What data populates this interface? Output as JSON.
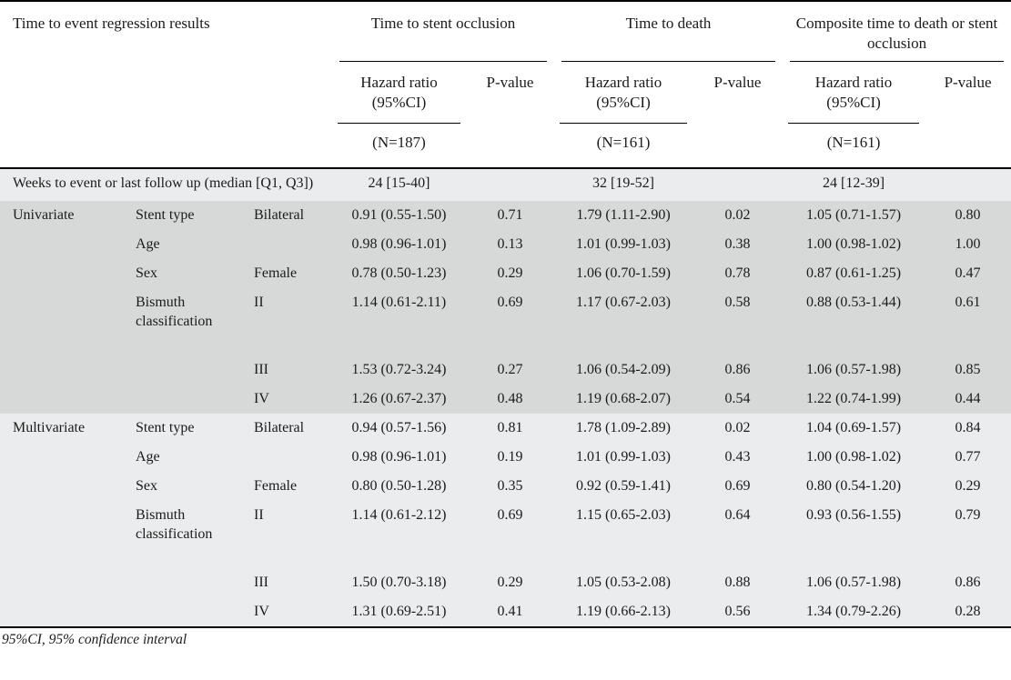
{
  "table": {
    "title": "Time to event regression results",
    "groups": [
      {
        "label": "Time to stent occlusion",
        "n": "(N=187)"
      },
      {
        "label": "Time to death",
        "n": "(N=161)"
      },
      {
        "label": "Composite time to death or stent occlusion",
        "n": "(N=161)"
      }
    ],
    "sub": {
      "hazard_ratio": "Hazard ratio (95%CI)",
      "p_value": "P-value"
    },
    "rows": [
      {
        "type": "span",
        "shade": "light",
        "tall": false,
        "label": "Weeks to event or last follow up (median [Q1, Q3])",
        "values": [
          "24 [15-40]",
          "",
          "32 [19-52]",
          "",
          "24 [12-39]",
          ""
        ]
      },
      {
        "type": "data",
        "shade": "dark",
        "tall": false,
        "cells": [
          "Univariate",
          "Stent type",
          "Bilateral",
          "0.91 (0.55-1.50)",
          "0.71",
          "1.79 (1.11-2.90)",
          "0.02",
          "1.05 (0.71-1.57)",
          "0.80"
        ]
      },
      {
        "type": "data",
        "shade": "dark",
        "tall": false,
        "cells": [
          "",
          "Age",
          "",
          "0.98 (0.96-1.01)",
          "0.13",
          "1.01 (0.99-1.03)",
          "0.38",
          "1.00 (0.98-1.02)",
          "1.00"
        ]
      },
      {
        "type": "data",
        "shade": "dark",
        "tall": false,
        "cells": [
          "",
          "Sex",
          "Female",
          "0.78 (0.50-1.23)",
          "0.29",
          "1.06 (0.70-1.59)",
          "0.78",
          "0.87 (0.61-1.25)",
          "0.47"
        ]
      },
      {
        "type": "data",
        "shade": "dark",
        "tall": true,
        "cells": [
          "",
          "Bismuth classification",
          "II",
          "1.14 (0.61-2.11)",
          "0.69",
          "1.17 (0.67-2.03)",
          "0.58",
          "0.88 (0.53-1.44)",
          "0.61"
        ]
      },
      {
        "type": "data",
        "shade": "dark",
        "tall": false,
        "cells": [
          "",
          "",
          "III",
          "1.53 (0.72-3.24)",
          "0.27",
          "1.06 (0.54-2.09)",
          "0.86",
          "1.06 (0.57-1.98)",
          "0.85"
        ]
      },
      {
        "type": "data",
        "shade": "dark",
        "tall": false,
        "cells": [
          "",
          "",
          "IV",
          "1.26 (0.67-2.37)",
          "0.48",
          "1.19 (0.68-2.07)",
          "0.54",
          "1.22 (0.74-1.99)",
          "0.44"
        ]
      },
      {
        "type": "data",
        "shade": "light",
        "tall": false,
        "cells": [
          "Multivariate",
          "Stent type",
          "Bilateral",
          "0.94 (0.57-1.56)",
          "0.81",
          "1.78 (1.09-2.89)",
          "0.02",
          "1.04 (0.69-1.57)",
          "0.84"
        ]
      },
      {
        "type": "data",
        "shade": "light",
        "tall": false,
        "cells": [
          "",
          "Age",
          "",
          "0.98 (0.96-1.01)",
          "0.19",
          "1.01 (0.99-1.03)",
          "0.43",
          "1.00 (0.98-1.02)",
          "0.77"
        ]
      },
      {
        "type": "data",
        "shade": "light",
        "tall": false,
        "cells": [
          "",
          "Sex",
          "Female",
          "0.80 (0.50-1.28)",
          "0.35",
          "0.92 (0.59-1.41)",
          "0.69",
          "0.80 (0.54-1.20)",
          "0.29"
        ]
      },
      {
        "type": "data",
        "shade": "light",
        "tall": true,
        "cells": [
          "",
          "Bismuth classification",
          "II",
          "1.14 (0.61-2.12)",
          "0.69",
          "1.15 (0.65-2.03)",
          "0.64",
          "0.93 (0.56-1.55)",
          "0.79"
        ]
      },
      {
        "type": "data",
        "shade": "light",
        "tall": false,
        "cells": [
          "",
          "",
          "III",
          "1.50 (0.70-3.18)",
          "0.29",
          "1.05 (0.53-2.08)",
          "0.88",
          "1.06 (0.57-1.98)",
          "0.86"
        ]
      },
      {
        "type": "data",
        "shade": "light",
        "tall": false,
        "cells": [
          "",
          "",
          "IV",
          "1.31 (0.69-2.51)",
          "0.41",
          "1.19 (0.66-2.13)",
          "0.56",
          "1.34 (0.79-2.26)",
          "0.28"
        ]
      }
    ],
    "footnote": "95%CI, 95% confidence interval"
  },
  "colors": {
    "band_light": "#ebeced",
    "band_dark": "#d7d9d9",
    "rule": "#000000",
    "text": "#1b1b1b",
    "background": "#ffffff"
  }
}
